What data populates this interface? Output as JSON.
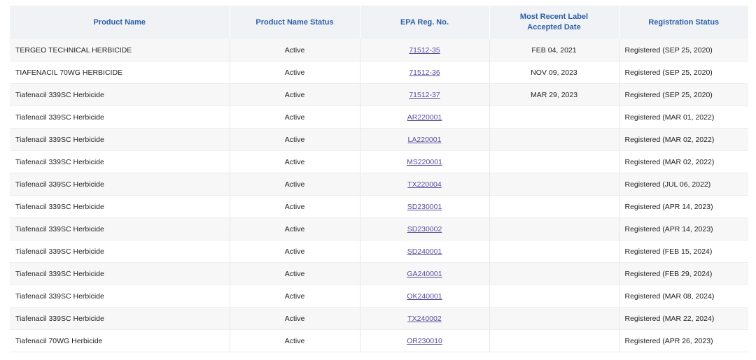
{
  "table": {
    "headers": {
      "product_name": "Product Name",
      "product_name_status": "Product Name Status",
      "epa_reg_no": "EPA Reg. No.",
      "label_date_line1": "Most Recent Label",
      "label_date_line2": "Accepted Date",
      "registration_status": "Registration Status"
    },
    "rows": [
      {
        "name": "TERGEO TECHNICAL HERBICIDE",
        "status": "Active",
        "reg": "71512-35",
        "date": "FEB 04, 2021",
        "registration": "Registered (SEP 25, 2020)"
      },
      {
        "name": "TIAFENACIL 70WG HERBICIDE",
        "status": "Active",
        "reg": "71512-36",
        "date": "NOV 09, 2023",
        "registration": "Registered (SEP 25, 2020)"
      },
      {
        "name": "Tiafenacil 339SC Herbicide",
        "status": "Active",
        "reg": "71512-37",
        "date": "MAR 29, 2023",
        "registration": "Registered (SEP 25, 2020)"
      },
      {
        "name": "Tiafenacil 339SC Herbicide",
        "status": "Active",
        "reg": "AR220001",
        "date": "",
        "registration": "Registered (MAR 01, 2022)"
      },
      {
        "name": "Tiafenacil 339SC Herbicide",
        "status": "Active",
        "reg": "LA220001",
        "date": "",
        "registration": "Registered (MAR 02, 2022)"
      },
      {
        "name": "Tiafenacil 339SC Herbicide",
        "status": "Active",
        "reg": "MS220001",
        "date": "",
        "registration": "Registered (MAR 02, 2022)"
      },
      {
        "name": "Tiafenacil 339SC Herbicide",
        "status": "Active",
        "reg": "TX220004",
        "date": "",
        "registration": "Registered (JUL 06, 2022)"
      },
      {
        "name": "Tiafenacil 339SC Herbicide",
        "status": "Active",
        "reg": "SD230001",
        "date": "",
        "registration": "Registered (APR 14, 2023)"
      },
      {
        "name": "Tiafenacil 339SC Herbicide",
        "status": "Active",
        "reg": "SD230002",
        "date": "",
        "registration": "Registered (APR 14, 2023)"
      },
      {
        "name": "Tiafenacil 339SC Herbicide",
        "status": "Active",
        "reg": "SD240001",
        "date": "",
        "registration": "Registered (FEB 15, 2024)"
      },
      {
        "name": "Tiafenacil 339SC Herbicide",
        "status": "Active",
        "reg": "GA240001",
        "date": "",
        "registration": "Registered (FEB 29, 2024)"
      },
      {
        "name": "Tiafenacil 339SC Herbicide",
        "status": "Active",
        "reg": "OK240001",
        "date": "",
        "registration": "Registered (MAR 08, 2024)"
      },
      {
        "name": "Tiafenacil 339SC Herbicide",
        "status": "Active",
        "reg": "TX240002",
        "date": "",
        "registration": "Registered (MAR 22, 2024)"
      },
      {
        "name": "Tiafenacil 70WG Herbicide",
        "status": "Active",
        "reg": "OR230010",
        "date": "",
        "registration": "Registered (APR 26, 2023)"
      }
    ]
  },
  "colors": {
    "header_text": "#2b5fa8",
    "header_bg": "#f1f2f5",
    "link": "#5a4b9a"
  }
}
